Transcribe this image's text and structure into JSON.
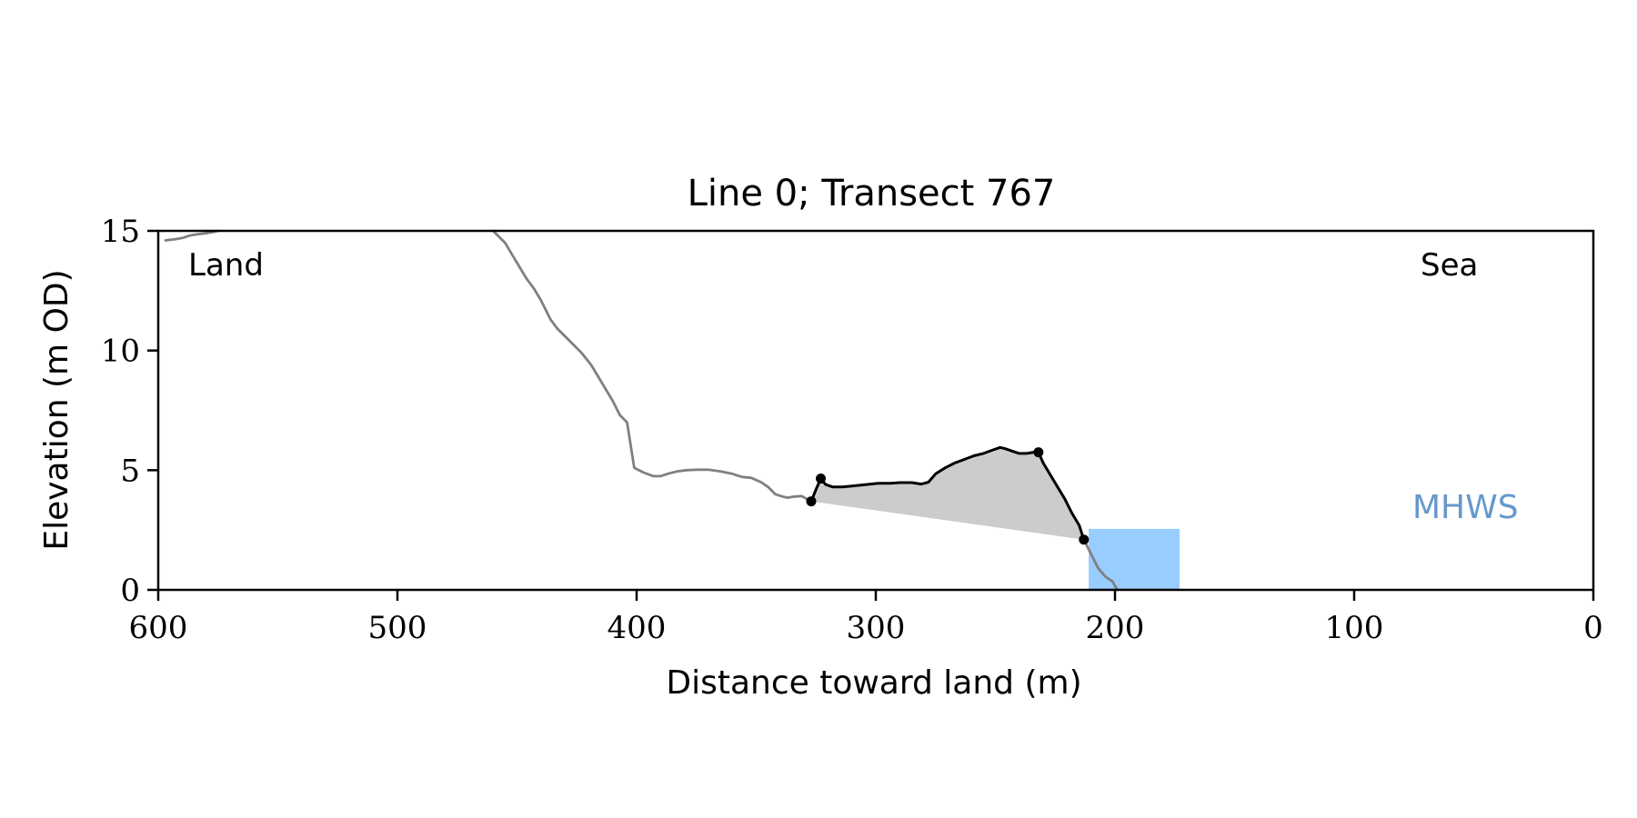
{
  "chart_data": {
    "type": "line",
    "title": "Line 0; Transect 767",
    "xlabel": "Distance toward land (m)",
    "ylabel": "Elevation (m OD)",
    "xlim": [
      600,
      0
    ],
    "ylim": [
      0,
      15
    ],
    "x_ticks": [
      600,
      500,
      400,
      300,
      200,
      100,
      0
    ],
    "y_ticks": [
      0,
      5,
      10,
      15
    ],
    "grid": false,
    "annotations": {
      "land": "Land",
      "sea": "Sea",
      "mhws": "MHWS"
    },
    "colors": {
      "profile": "#808080",
      "segment": "#000000",
      "fill": "#cccccc",
      "mhws_box": "#99ccff",
      "mhws_text": "#6699cc"
    },
    "series": [
      {
        "x": [
          597,
          593,
          590,
          587,
          584,
          580,
          577,
          575
        ],
        "y": [
          14.6,
          14.65,
          14.7,
          14.8,
          14.85,
          14.9,
          14.95,
          15.0
        ]
      },
      {
        "x": [
          460,
          458,
          455,
          452,
          449,
          446,
          443,
          440,
          436,
          433,
          429,
          426,
          423,
          419,
          416,
          413,
          410,
          407,
          404,
          401,
          397,
          393,
          390,
          387,
          383,
          379,
          375,
          370,
          365,
          360,
          356,
          352,
          348,
          345,
          342,
          339,
          337,
          334,
          331,
          328
        ],
        "y": [
          15.0,
          14.8,
          14.5,
          14.0,
          13.5,
          13.0,
          12.6,
          12.1,
          11.3,
          10.9,
          10.5,
          10.2,
          9.9,
          9.4,
          8.9,
          8.4,
          7.9,
          7.3,
          7.0,
          5.1,
          4.9,
          4.75,
          4.75,
          4.85,
          4.95,
          5.0,
          5.02,
          5.02,
          4.95,
          4.85,
          4.72,
          4.68,
          4.5,
          4.3,
          4.0,
          3.9,
          3.85,
          3.9,
          3.92,
          3.75
        ]
      },
      {
        "x": [
          327,
          325,
          323,
          321,
          318,
          314,
          309,
          304,
          299,
          294,
          290,
          285,
          281,
          278,
          275,
          271,
          267,
          263,
          259,
          255,
          251,
          248,
          246,
          243,
          240,
          237,
          234,
          232,
          230,
          227,
          224,
          221,
          218,
          215,
          213
        ],
        "y": [
          3.7,
          4.2,
          4.65,
          4.4,
          4.3,
          4.3,
          4.35,
          4.4,
          4.45,
          4.45,
          4.48,
          4.48,
          4.42,
          4.5,
          4.85,
          5.1,
          5.3,
          5.45,
          5.6,
          5.7,
          5.85,
          5.95,
          5.9,
          5.8,
          5.7,
          5.7,
          5.75,
          5.75,
          5.3,
          4.8,
          4.3,
          3.8,
          3.2,
          2.7,
          2.1
        ]
      },
      {
        "x": [
          213,
          210,
          207,
          204,
          201,
          199
        ],
        "y": [
          2.1,
          1.5,
          0.9,
          0.55,
          0.35,
          0.0
        ]
      }
    ],
    "markers": [
      {
        "x": 327,
        "y": 3.7
      },
      {
        "x": 323,
        "y": 4.65
      },
      {
        "x": 232,
        "y": 5.75
      },
      {
        "x": 213,
        "y": 2.1
      }
    ],
    "mhws_box": {
      "x": [
        211,
        173
      ],
      "y": [
        0,
        2.55
      ]
    }
  }
}
